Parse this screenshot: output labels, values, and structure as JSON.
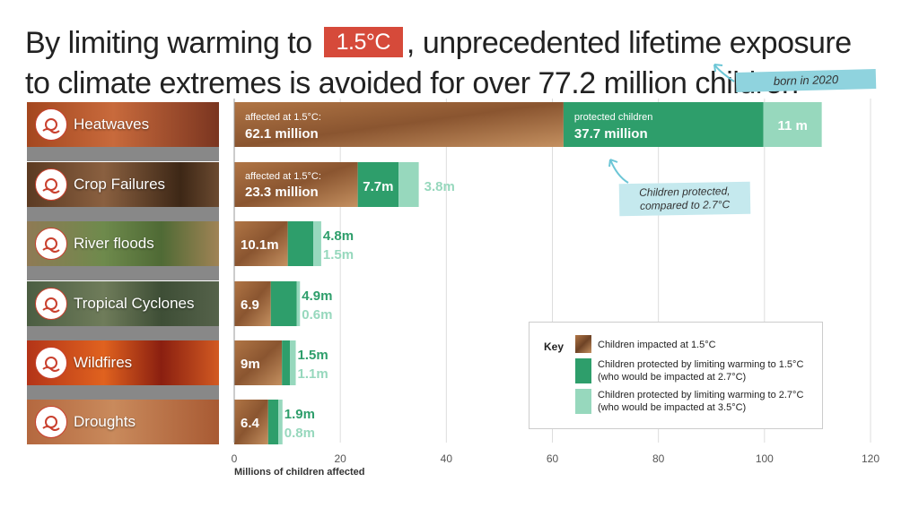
{
  "title": {
    "before": "By limiting warming to",
    "highlight": "1.5°C",
    "after_line1": ", unprecedented lifetime exposure",
    "line2": "to climate extremes is avoided for over 77.2 million children",
    "born_tag": "born in 2020"
  },
  "hazards": [
    {
      "label": "Heatwaves",
      "icon": "heatwave-icon"
    },
    {
      "label": "Crop Failures",
      "icon": "crop-failure-icon"
    },
    {
      "label": "River floods",
      "icon": "river-flood-icon"
    },
    {
      "label": "Tropical Cyclones",
      "icon": "cyclone-icon"
    },
    {
      "label": "Wildfires",
      "icon": "wildfire-icon"
    },
    {
      "label": "Droughts",
      "icon": "drought-icon"
    }
  ],
  "annotation": {
    "line1": "Children protected,",
    "line2": "compared to 2.7°C"
  },
  "key": {
    "title": "Key",
    "items": [
      "Children impacted at 1.5°C",
      "Children protected by limiting warming to 1.5°C (who would be impacted at 2.7°C)",
      "Children protected by limiting warming to 2.7°C (who would be impacted at 3.5°C)"
    ]
  },
  "colors": {
    "impacted": "#9b6a3a",
    "protected_27": "#2e9e6b",
    "protected_35": "#97d8bd",
    "title_highlight": "#d64a3a"
  },
  "chart_data": {
    "type": "bar",
    "stacked": true,
    "orientation": "horizontal",
    "categories": [
      "Heatwaves",
      "Crop Failures",
      "River floods",
      "Tropical Cyclones",
      "Wildfires",
      "Droughts"
    ],
    "series": [
      {
        "name": "Children impacted at 1.5°C",
        "values": [
          62.1,
          23.3,
          10.1,
          6.9,
          9,
          6.4
        ],
        "labels": [
          "62.1 million",
          "23.3 million",
          "10.1m",
          "6.9",
          "9m",
          "6.4"
        ]
      },
      {
        "name": "Children protected by limiting warming to 1.5°C (who would be impacted at 2.7°C)",
        "values": [
          37.7,
          7.7,
          4.8,
          4.9,
          1.5,
          1.9
        ],
        "labels": [
          "37.7 million",
          "7.7m",
          "4.8m",
          "4.9m",
          "1.5m",
          "1.9m"
        ]
      },
      {
        "name": "Children protected by limiting warming to 2.7°C (who would be impacted at 3.5°C)",
        "values": [
          11,
          3.8,
          1.5,
          0.6,
          1.1,
          0.8
        ],
        "labels": [
          "11 m",
          "3.8m",
          "1.5m",
          "0.6m",
          "1.1m",
          "0.8m"
        ]
      }
    ],
    "inbar_prefix": {
      "impacted": "affected at 1.5°C:",
      "protected": "protected children"
    },
    "xlabel": "Millions of children affected",
    "xlim": [
      0,
      120
    ],
    "xticks": [
      0,
      20,
      40,
      60,
      80,
      100,
      120
    ],
    "grid": true
  }
}
